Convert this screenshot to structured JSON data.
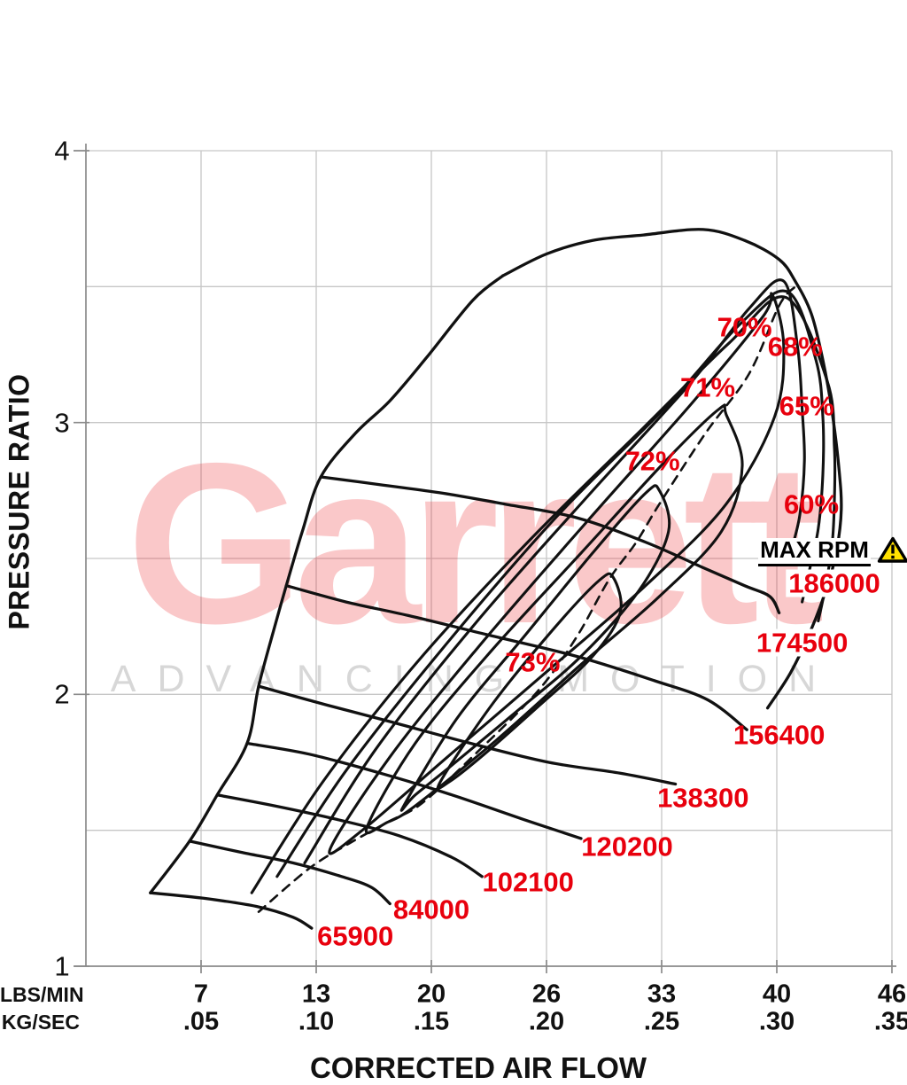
{
  "watermark": {
    "brand": "Garrett",
    "tagline": "ADVANCING MOTION"
  },
  "axis_titles": {
    "x": "CORRECTED AIR FLOW",
    "y": "PRESSURE RATIO"
  },
  "max_rpm": {
    "label": "MAX RPM",
    "icon": "warning-triangle-icon"
  },
  "colors": {
    "curve": "#111111",
    "red_label": "#e8000d",
    "grid": "#c6c6c6",
    "axis": "#8a8a8a",
    "watermark_red": "#ED1C24",
    "watermark_gray": "#d7d7d7",
    "warning_yellow": "#FFE000"
  },
  "chart_data": {
    "type": "line",
    "units": {
      "x": "kg/sec (corrected air flow)",
      "y": "pressure ratio"
    },
    "x_axis": {
      "min": 0,
      "max": 0.35,
      "tick_positions": [
        0.05,
        0.1,
        0.15,
        0.2,
        0.25,
        0.3,
        0.35
      ],
      "rows": [
        {
          "unit": "LBS/MIN",
          "values": [
            "7",
            "13",
            "20",
            "26",
            "33",
            "40",
            "46"
          ]
        },
        {
          "unit": "KG/SEC",
          "values": [
            ".05",
            ".10",
            ".15",
            ".20",
            ".25",
            ".30",
            ".35"
          ]
        }
      ]
    },
    "y_axis": {
      "min": 1,
      "max": 4,
      "tick_values": [
        4,
        3,
        2,
        1
      ],
      "grid_values": [
        1.5,
        2,
        2.5,
        3,
        3.5,
        4
      ]
    },
    "surge_line": [
      [
        0.028,
        1.27
      ],
      [
        0.045,
        1.46
      ],
      [
        0.057,
        1.63
      ],
      [
        0.07,
        1.82
      ],
      [
        0.075,
        2.03
      ],
      [
        0.082,
        2.25
      ],
      [
        0.087,
        2.4
      ],
      [
        0.094,
        2.6
      ],
      [
        0.102,
        2.8
      ],
      [
        0.117,
        2.96
      ],
      [
        0.132,
        3.08
      ],
      [
        0.148,
        3.24
      ],
      [
        0.168,
        3.45
      ],
      [
        0.181,
        3.54
      ]
    ],
    "speed_lines": [
      {
        "rpm": "65900",
        "label_pos": [
          0.117,
          1.11
        ],
        "points": [
          [
            0.028,
            1.27
          ],
          [
            0.051,
            1.25
          ],
          [
            0.074,
            1.22
          ],
          [
            0.09,
            1.18
          ],
          [
            0.098,
            1.14
          ]
        ]
      },
      {
        "rpm": "84000",
        "label_pos": [
          0.15,
          1.21
        ],
        "points": [
          [
            0.045,
            1.46
          ],
          [
            0.067,
            1.42
          ],
          [
            0.09,
            1.38
          ],
          [
            0.111,
            1.33
          ],
          [
            0.124,
            1.29
          ],
          [
            0.132,
            1.23
          ]
        ]
      },
      {
        "rpm": "102100",
        "label_pos": [
          0.192,
          1.31
        ],
        "points": [
          [
            0.057,
            1.63
          ],
          [
            0.082,
            1.59
          ],
          [
            0.109,
            1.54
          ],
          [
            0.136,
            1.48
          ],
          [
            0.159,
            1.4
          ],
          [
            0.172,
            1.33
          ]
        ]
      },
      {
        "rpm": "120200",
        "label_pos": [
          0.235,
          1.44
        ],
        "points": [
          [
            0.07,
            1.82
          ],
          [
            0.097,
            1.78
          ],
          [
            0.128,
            1.71
          ],
          [
            0.159,
            1.63
          ],
          [
            0.19,
            1.54
          ],
          [
            0.215,
            1.47
          ]
        ]
      },
      {
        "rpm": "138300",
        "label_pos": [
          0.268,
          1.62
        ],
        "points": [
          [
            0.075,
            2.03
          ],
          [
            0.105,
            1.96
          ],
          [
            0.132,
            1.9
          ],
          [
            0.167,
            1.82
          ],
          [
            0.201,
            1.75
          ],
          [
            0.232,
            1.71
          ],
          [
            0.256,
            1.67
          ]
        ]
      },
      {
        "rpm": "156400",
        "label_pos": [
          0.301,
          1.85
        ],
        "points": [
          [
            0.087,
            2.4
          ],
          [
            0.113,
            2.34
          ],
          [
            0.14,
            2.29
          ],
          [
            0.174,
            2.22
          ],
          [
            0.213,
            2.14
          ],
          [
            0.247,
            2.05
          ],
          [
            0.27,
            1.98
          ],
          [
            0.287,
            1.87
          ]
        ]
      },
      {
        "rpm": "174500",
        "label_pos": [
          0.311,
          2.19
        ],
        "label_bg": true,
        "points": [
          [
            0.102,
            2.8
          ],
          [
            0.129,
            2.77
          ],
          [
            0.155,
            2.74
          ],
          [
            0.182,
            2.7
          ],
          [
            0.213,
            2.65
          ],
          [
            0.243,
            2.56
          ],
          [
            0.267,
            2.47
          ],
          [
            0.286,
            2.4
          ],
          [
            0.297,
            2.36
          ],
          [
            0.301,
            2.3
          ]
        ]
      },
      {
        "rpm": "186000",
        "label_pos": [
          0.325,
          2.41
        ],
        "label_bg": true,
        "points": [
          [
            0.181,
            3.54
          ],
          [
            0.2,
            3.62
          ],
          [
            0.22,
            3.67
          ],
          [
            0.242,
            3.69
          ],
          [
            0.268,
            3.71
          ],
          [
            0.286,
            3.67
          ],
          [
            0.301,
            3.6
          ],
          [
            0.308,
            3.52
          ],
          [
            0.315,
            3.4
          ],
          [
            0.32,
            3.23
          ],
          [
            0.324,
            3.04
          ],
          [
            0.327,
            2.83
          ],
          [
            0.328,
            2.68
          ],
          [
            0.326,
            2.53
          ],
          [
            0.322,
            2.4
          ],
          [
            0.315,
            2.24
          ],
          [
            0.306,
            2.08
          ],
          [
            0.296,
            1.95
          ]
        ]
      }
    ],
    "efficiency_islands": [
      {
        "label": "73%",
        "closed": true,
        "label_pos": [
          0.194,
          2.12
        ],
        "points": [
          [
            0.154,
            1.68
          ],
          [
            0.177,
            1.97
          ],
          [
            0.204,
            2.25
          ],
          [
            0.223,
            2.42
          ],
          [
            0.229,
            2.43
          ],
          [
            0.232,
            2.3
          ],
          [
            0.22,
            2.14
          ],
          [
            0.197,
            1.96
          ],
          [
            0.173,
            1.78
          ],
          [
            0.158,
            1.68
          ]
        ]
      },
      {
        "label": "72%",
        "closed": true,
        "label_pos": [
          0.246,
          2.86
        ],
        "points": [
          [
            0.138,
            1.59
          ],
          [
            0.161,
            1.91
          ],
          [
            0.19,
            2.21
          ],
          [
            0.22,
            2.52
          ],
          [
            0.243,
            2.74
          ],
          [
            0.249,
            2.75
          ],
          [
            0.253,
            2.6
          ],
          [
            0.24,
            2.38
          ],
          [
            0.215,
            2.14
          ],
          [
            0.186,
            1.93
          ],
          [
            0.159,
            1.74
          ],
          [
            0.143,
            1.63
          ]
        ]
      },
      {
        "label": "71%",
        "closed": true,
        "label_pos": [
          0.27,
          3.13
        ],
        "points": [
          [
            0.122,
            1.51
          ],
          [
            0.143,
            1.82
          ],
          [
            0.176,
            2.16
          ],
          [
            0.215,
            2.52
          ],
          [
            0.253,
            2.87
          ],
          [
            0.275,
            3.05
          ],
          [
            0.278,
            3.03
          ],
          [
            0.285,
            2.84
          ],
          [
            0.276,
            2.6
          ],
          [
            0.249,
            2.36
          ],
          [
            0.215,
            2.11
          ],
          [
            0.178,
            1.83
          ],
          [
            0.143,
            1.59
          ],
          [
            0.131,
            1.53
          ]
        ]
      },
      {
        "label": "70%",
        "closed": true,
        "label_pos": [
          0.286,
          3.35
        ],
        "points": [
          [
            0.106,
            1.43
          ],
          [
            0.132,
            1.77
          ],
          [
            0.17,
            2.17
          ],
          [
            0.217,
            2.63
          ],
          [
            0.263,
            3.07
          ],
          [
            0.294,
            3.39
          ],
          [
            0.298,
            3.47
          ],
          [
            0.303,
            3.28
          ],
          [
            0.299,
            3.02
          ],
          [
            0.278,
            2.7
          ],
          [
            0.243,
            2.4
          ],
          [
            0.201,
            2.09
          ],
          [
            0.157,
            1.77
          ],
          [
            0.12,
            1.5
          ]
        ]
      },
      {
        "label": "68%",
        "closed": false,
        "label_pos": [
          0.308,
          3.28
        ],
        "points": [
          [
            0.095,
            1.38
          ],
          [
            0.126,
            1.8
          ],
          [
            0.17,
            2.27
          ],
          [
            0.218,
            2.73
          ],
          [
            0.263,
            3.15
          ],
          [
            0.288,
            3.42
          ],
          [
            0.303,
            3.52
          ],
          [
            0.309,
            3.28
          ],
          [
            0.311,
            3.05
          ],
          [
            0.312,
            2.86
          ],
          [
            0.31,
            2.66
          ],
          [
            0.306,
            2.52
          ]
        ]
      },
      {
        "label": "65%",
        "closed": false,
        "label_pos": [
          0.313,
          3.06
        ],
        "points": [
          [
            0.083,
            1.33
          ],
          [
            0.113,
            1.72
          ],
          [
            0.155,
            2.17
          ],
          [
            0.204,
            2.65
          ],
          [
            0.251,
            3.05
          ],
          [
            0.285,
            3.37
          ],
          [
            0.305,
            3.48
          ],
          [
            0.317,
            3.23
          ],
          [
            0.32,
            3.02
          ],
          [
            0.32,
            2.81
          ],
          [
            0.318,
            2.61
          ],
          [
            0.314,
            2.45
          ],
          [
            0.311,
            2.34
          ]
        ]
      },
      {
        "label": "60%",
        "closed": false,
        "label_pos": [
          0.315,
          2.7
        ],
        "points": [
          [
            0.072,
            1.27
          ],
          [
            0.103,
            1.68
          ],
          [
            0.144,
            2.12
          ],
          [
            0.193,
            2.57
          ],
          [
            0.242,
            2.98
          ],
          [
            0.279,
            3.29
          ],
          [
            0.304,
            3.46
          ],
          [
            0.322,
            3.15
          ],
          [
            0.325,
            2.91
          ],
          [
            0.325,
            2.71
          ],
          [
            0.324,
            2.55
          ],
          [
            0.321,
            2.39
          ],
          [
            0.318,
            2.27
          ]
        ]
      }
    ],
    "peak_efficiency_line": {
      "style": "dashed",
      "points": [
        [
          0.075,
          1.2
        ],
        [
          0.097,
          1.36
        ],
        [
          0.114,
          1.45
        ],
        [
          0.131,
          1.53
        ],
        [
          0.146,
          1.6
        ],
        [
          0.169,
          1.78
        ],
        [
          0.196,
          2.01
        ],
        [
          0.213,
          2.21
        ],
        [
          0.227,
          2.42
        ],
        [
          0.239,
          2.56
        ],
        [
          0.249,
          2.7
        ],
        [
          0.269,
          2.96
        ],
        [
          0.288,
          3.18
        ],
        [
          0.301,
          3.43
        ],
        [
          0.308,
          3.5
        ]
      ]
    },
    "max_rpm_pos": [
      0.3135,
      2.52
    ]
  }
}
